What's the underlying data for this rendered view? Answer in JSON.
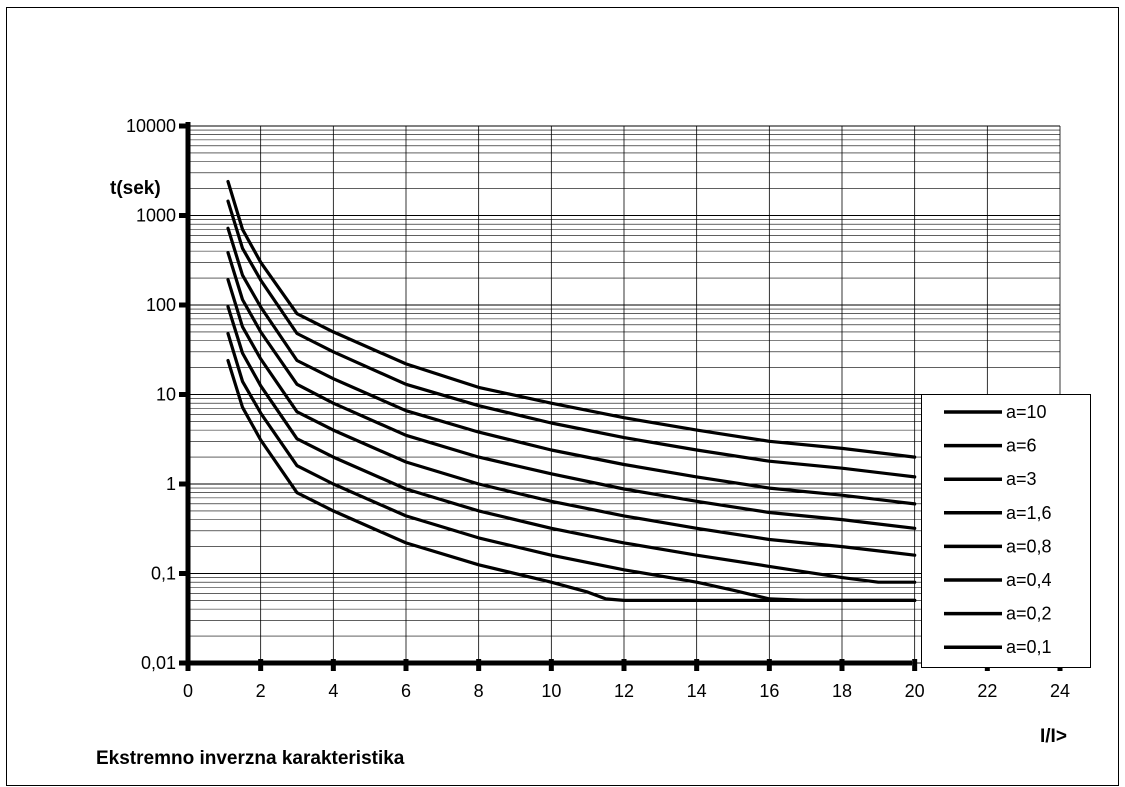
{
  "chart_data": {
    "type": "line",
    "title": "Ekstremno inverzna karakteristika",
    "xlabel": "I/I>",
    "ylabel": "t(sek)",
    "xlim": [
      0,
      24
    ],
    "ylim": [
      0.01,
      10000
    ],
    "yscale": "log",
    "grid": true,
    "legend": "right",
    "x_ticks": [
      "0",
      "2",
      "4",
      "6",
      "8",
      "10",
      "12",
      "14",
      "16",
      "18",
      "20",
      "22",
      "24"
    ],
    "y_ticks": [
      "0,01",
      "0,1",
      "1",
      "10",
      "100",
      "1000",
      "10000"
    ],
    "series": [
      {
        "name": "a=10",
        "x": [
          1.1,
          1.5,
          2,
          3,
          4,
          6,
          8,
          10,
          12,
          14,
          16,
          18,
          20
        ],
        "y": [
          2400,
          700,
          300,
          80,
          50,
          22,
          12,
          8,
          5.5,
          4,
          3,
          2.5,
          2
        ]
      },
      {
        "name": "a=6",
        "x": [
          1.1,
          1.5,
          2,
          3,
          4,
          6,
          8,
          10,
          12,
          14,
          16,
          18,
          20
        ],
        "y": [
          1450,
          430,
          190,
          48,
          30,
          13,
          7.5,
          4.8,
          3.3,
          2.4,
          1.8,
          1.5,
          1.2
        ]
      },
      {
        "name": "a=3",
        "x": [
          1.1,
          1.5,
          2,
          3,
          4,
          6,
          8,
          10,
          12,
          14,
          16,
          18,
          20
        ],
        "y": [
          720,
          215,
          95,
          24,
          15,
          6.6,
          3.8,
          2.4,
          1.65,
          1.2,
          0.9,
          0.75,
          0.6
        ]
      },
      {
        "name": "a=1,6",
        "x": [
          1.1,
          1.5,
          2,
          3,
          4,
          6,
          8,
          10,
          12,
          14,
          16,
          18,
          20
        ],
        "y": [
          385,
          115,
          50,
          13,
          8,
          3.5,
          2,
          1.3,
          0.88,
          0.64,
          0.48,
          0.4,
          0.32
        ]
      },
      {
        "name": "a=0,8",
        "x": [
          1.1,
          1.5,
          2,
          3,
          4,
          6,
          8,
          10,
          12,
          14,
          16,
          18,
          20
        ],
        "y": [
          192,
          57,
          25,
          6.4,
          4,
          1.76,
          1,
          0.64,
          0.44,
          0.32,
          0.24,
          0.2,
          0.16
        ]
      },
      {
        "name": "a=0,4",
        "x": [
          1.1,
          1.5,
          2,
          3,
          4,
          6,
          8,
          10,
          12,
          14,
          16,
          18,
          19,
          20
        ],
        "y": [
          96,
          29,
          12.5,
          3.2,
          2,
          0.88,
          0.5,
          0.32,
          0.22,
          0.16,
          0.12,
          0.09,
          0.08,
          0.08
        ]
      },
      {
        "name": "a=0,2",
        "x": [
          1.1,
          1.5,
          2,
          3,
          4,
          6,
          8,
          10,
          12,
          14,
          15,
          16,
          17,
          18,
          20
        ],
        "y": [
          48,
          14,
          6.2,
          1.6,
          1,
          0.44,
          0.25,
          0.16,
          0.11,
          0.08,
          0.065,
          0.052,
          0.05,
          0.05,
          0.05
        ]
      },
      {
        "name": "a=0,1",
        "x": [
          1.1,
          1.5,
          2,
          3,
          4,
          6,
          8,
          10,
          11,
          11.5,
          12,
          14,
          16,
          18,
          20
        ],
        "y": [
          24,
          7.2,
          3.1,
          0.8,
          0.5,
          0.22,
          0.125,
          0.08,
          0.062,
          0.052,
          0.05,
          0.05,
          0.05,
          0.05,
          0.05
        ]
      }
    ]
  }
}
